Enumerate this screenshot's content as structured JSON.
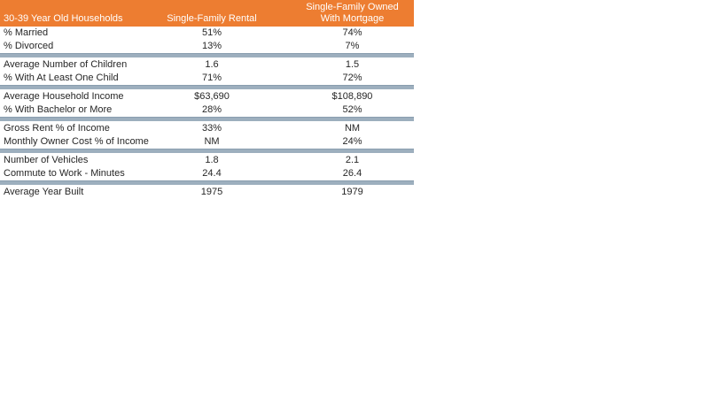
{
  "colors": {
    "header_bg": "#ED7D31",
    "header_text": "#FFFFFF",
    "divider_bar": "#9DAFBE",
    "body_text": "#262626",
    "page_bg": "#FFFFFF"
  },
  "chart_data": {
    "type": "table",
    "title": "30-39 Year Old Households",
    "columns": [
      "Single-Family Rental",
      "Single-Family Owned With Mortgage"
    ],
    "layout_hints": {
      "header_style": "orange band, white text",
      "group_separator": "blue-gray horizontal bar",
      "value_alignment": "center"
    },
    "groups": [
      {
        "rows": [
          {
            "label": "% Married",
            "rental": "51%",
            "owned": "74%"
          },
          {
            "label": "% Divorced",
            "rental": "13%",
            "owned": "7%"
          }
        ]
      },
      {
        "rows": [
          {
            "label": "Average Number of Children",
            "rental": "1.6",
            "owned": "1.5"
          },
          {
            "label": "% With At Least One Child",
            "rental": "71%",
            "owned": "72%"
          }
        ]
      },
      {
        "rows": [
          {
            "label": "Average Household Income",
            "rental": "$63,690",
            "owned": "$108,890"
          },
          {
            "label": "% With Bachelor or More",
            "rental": "28%",
            "owned": "52%"
          }
        ]
      },
      {
        "rows": [
          {
            "label": "Gross Rent % of Income",
            "rental": "33%",
            "owned": "NM"
          },
          {
            "label": "Monthly Owner Cost % of Income",
            "rental": "NM",
            "owned": "24%"
          }
        ]
      },
      {
        "rows": [
          {
            "label": "Number of Vehicles",
            "rental": "1.8",
            "owned": "2.1"
          },
          {
            "label": "Commute to Work - Minutes",
            "rental": "24.4",
            "owned": "26.4"
          }
        ]
      },
      {
        "rows": [
          {
            "label": "Average Year Built",
            "rental": "1975",
            "owned": "1979"
          }
        ]
      }
    ]
  }
}
